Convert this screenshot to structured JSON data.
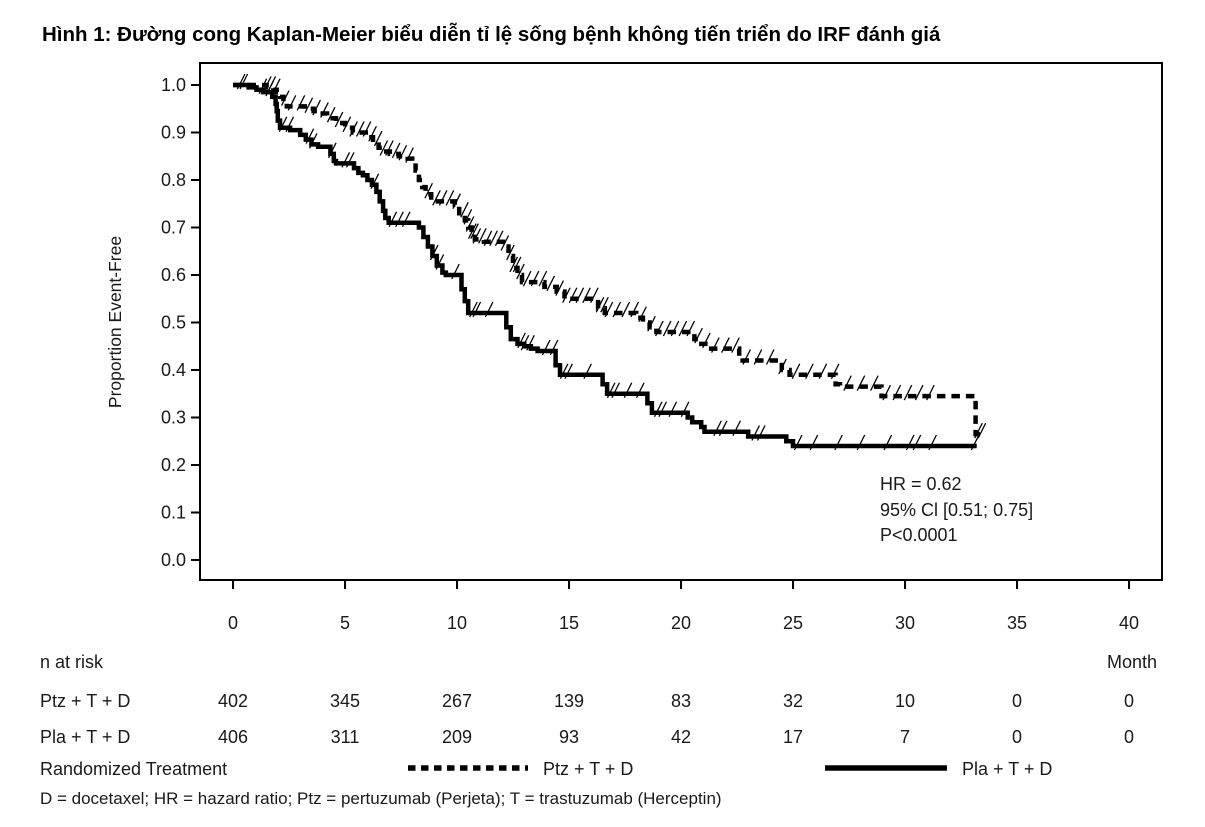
{
  "title": "Hình 1: Đường cong Kaplan-Meier biểu diễn tỉ lệ sống bệnh không tiến triển do IRF đánh giá",
  "colors": {
    "line": "#000000",
    "background": "#ffffff",
    "text": "#1a1a1a"
  },
  "chart_data": {
    "type": "line",
    "subtype": "kaplan-meier-step",
    "title": "Hình 1: Đường cong Kaplan-Meier biểu diễn tỉ lệ sống bệnh không tiến triển do IRF đánh giá",
    "xlabel": "Month",
    "ylabel": "Proportion Event-Free",
    "xlim": [
      0,
      40
    ],
    "ylim": [
      0.0,
      1.0
    ],
    "xticks": [
      0,
      5,
      10,
      15,
      20,
      25,
      30,
      35,
      40
    ],
    "ytick_labels": [
      "1.0",
      "0.9",
      "0.8",
      "0.7",
      "0.6",
      "0.5",
      "0.4",
      "0.3",
      "0.2",
      "0.1",
      "0.0"
    ],
    "grid": false,
    "legend_position": "bottom",
    "annotation": {
      "lines": [
        "HR = 0.62",
        "95% Cl [0.51; 0.75]",
        "P<0.0001"
      ]
    },
    "series": [
      {
        "name": "Ptz + T + D",
        "style": "dashed",
        "steps": [
          [
            0,
            1.0
          ],
          [
            1.5,
            0.995
          ],
          [
            1.8,
            0.99
          ],
          [
            1.95,
            0.985
          ],
          [
            2.1,
            0.975
          ],
          [
            2.25,
            0.965
          ],
          [
            2.4,
            0.955
          ],
          [
            3.2,
            0.95
          ],
          [
            3.6,
            0.945
          ],
          [
            3.85,
            0.94
          ],
          [
            4.2,
            0.93
          ],
          [
            4.6,
            0.92
          ],
          [
            5.0,
            0.91
          ],
          [
            5.35,
            0.9
          ],
          [
            6.05,
            0.89
          ],
          [
            6.25,
            0.88
          ],
          [
            6.5,
            0.868
          ],
          [
            6.65,
            0.86
          ],
          [
            7.0,
            0.855
          ],
          [
            7.4,
            0.85
          ],
          [
            7.8,
            0.845
          ],
          [
            8.0,
            0.835
          ],
          [
            8.15,
            0.82
          ],
          [
            8.3,
            0.8
          ],
          [
            8.45,
            0.785
          ],
          [
            8.6,
            0.77
          ],
          [
            8.85,
            0.755
          ],
          [
            9.9,
            0.748
          ],
          [
            10.1,
            0.73
          ],
          [
            10.35,
            0.715
          ],
          [
            10.5,
            0.7
          ],
          [
            10.65,
            0.685
          ],
          [
            10.8,
            0.675
          ],
          [
            11.2,
            0.67
          ],
          [
            12.05,
            0.66
          ],
          [
            12.3,
            0.64
          ],
          [
            12.5,
            0.615
          ],
          [
            12.7,
            0.6
          ],
          [
            12.9,
            0.585
          ],
          [
            13.9,
            0.575
          ],
          [
            14.45,
            0.565
          ],
          [
            14.8,
            0.55
          ],
          [
            16.3,
            0.53
          ],
          [
            16.6,
            0.52
          ],
          [
            18.0,
            0.51
          ],
          [
            18.3,
            0.5
          ],
          [
            18.6,
            0.49
          ],
          [
            18.9,
            0.48
          ],
          [
            20.6,
            0.465
          ],
          [
            20.8,
            0.455
          ],
          [
            21.2,
            0.445
          ],
          [
            22.6,
            0.43
          ],
          [
            22.75,
            0.42
          ],
          [
            24.5,
            0.4
          ],
          [
            24.85,
            0.39
          ],
          [
            26.9,
            0.37
          ],
          [
            27.1,
            0.365
          ],
          [
            28.95,
            0.345
          ],
          [
            33.15,
            0.265
          ]
        ],
        "end_month": 33.4,
        "censor_months": [
          0.33,
          1.5,
          1.7,
          1.9,
          2.3,
          2.6,
          3.0,
          3.35,
          3.7,
          4.05,
          4.35,
          4.7,
          5.05,
          5.35,
          5.65,
          5.95,
          6.2,
          6.45,
          6.7,
          6.95,
          7.25,
          7.55,
          7.85,
          8.7,
          9.05,
          9.35,
          9.65,
          9.95,
          10.3,
          10.45,
          10.55,
          10.65,
          10.75,
          10.85,
          11.1,
          11.35,
          11.6,
          11.85,
          12.1,
          12.35,
          12.5,
          12.65,
          12.8,
          13.1,
          13.45,
          13.8,
          14.15,
          14.55,
          14.85,
          15.15,
          15.45,
          15.75,
          16.1,
          16.35,
          16.55,
          16.75,
          17.1,
          17.5,
          17.9,
          18.25,
          18.65,
          19.0,
          19.35,
          19.7,
          20.05,
          20.4,
          20.75,
          21.1,
          21.5,
          21.95,
          22.4,
          22.9,
          23.4,
          23.95,
          24.5,
          25.1,
          25.7,
          26.3,
          26.85,
          27.4,
          28.0,
          28.6,
          29.15,
          29.6,
          30.1,
          30.6,
          31.1,
          33.25,
          33.4
        ]
      },
      {
        "name": "Pla + T + D",
        "style": "solid",
        "steps": [
          [
            0,
            1.0
          ],
          [
            0.7,
            0.995
          ],
          [
            1.05,
            0.99
          ],
          [
            1.35,
            0.985
          ],
          [
            1.75,
            0.975
          ],
          [
            1.9,
            0.96
          ],
          [
            1.95,
            0.945
          ],
          [
            2.0,
            0.925
          ],
          [
            2.1,
            0.91
          ],
          [
            2.55,
            0.905
          ],
          [
            3.0,
            0.895
          ],
          [
            3.25,
            0.885
          ],
          [
            3.5,
            0.875
          ],
          [
            3.8,
            0.87
          ],
          [
            4.35,
            0.855
          ],
          [
            4.5,
            0.84
          ],
          [
            4.6,
            0.835
          ],
          [
            5.4,
            0.825
          ],
          [
            5.6,
            0.815
          ],
          [
            5.8,
            0.81
          ],
          [
            6.0,
            0.8
          ],
          [
            6.2,
            0.79
          ],
          [
            6.4,
            0.775
          ],
          [
            6.55,
            0.755
          ],
          [
            6.7,
            0.735
          ],
          [
            6.8,
            0.72
          ],
          [
            6.95,
            0.71
          ],
          [
            8.3,
            0.7
          ],
          [
            8.5,
            0.68
          ],
          [
            8.7,
            0.66
          ],
          [
            8.9,
            0.64
          ],
          [
            9.1,
            0.62
          ],
          [
            9.35,
            0.605
          ],
          [
            9.5,
            0.6
          ],
          [
            10.2,
            0.57
          ],
          [
            10.35,
            0.545
          ],
          [
            10.5,
            0.52
          ],
          [
            12.2,
            0.49
          ],
          [
            12.4,
            0.465
          ],
          [
            12.7,
            0.455
          ],
          [
            13.0,
            0.45
          ],
          [
            13.3,
            0.445
          ],
          [
            13.6,
            0.44
          ],
          [
            14.4,
            0.41
          ],
          [
            14.6,
            0.39
          ],
          [
            16.5,
            0.37
          ],
          [
            16.7,
            0.35
          ],
          [
            18.5,
            0.33
          ],
          [
            18.7,
            0.31
          ],
          [
            20.3,
            0.3
          ],
          [
            20.5,
            0.29
          ],
          [
            20.9,
            0.28
          ],
          [
            21.05,
            0.27
          ],
          [
            23.0,
            0.26
          ],
          [
            24.7,
            0.25
          ],
          [
            25.0,
            0.24
          ]
        ],
        "end_month": 33.2,
        "censor_months": [
          0.45,
          1.3,
          1.6,
          2.2,
          2.5,
          3.4,
          3.55,
          4.4,
          5.0,
          5.2,
          6.3,
          7.1,
          7.4,
          7.7,
          8.95,
          9.2,
          9.9,
          10.7,
          10.85,
          11.4,
          12.85,
          13.0,
          13.25,
          13.95,
          14.3,
          14.75,
          14.95,
          15.8,
          16.85,
          17.05,
          17.6,
          18.15,
          18.95,
          19.15,
          19.6,
          20.15,
          21.6,
          21.85,
          22.45,
          23.3,
          23.55,
          25.2,
          25.9,
          27.0,
          28.0,
          29.2,
          30.2,
          30.5,
          31.2,
          33.1
        ]
      }
    ]
  },
  "risk_table": {
    "header": "n at risk",
    "month_label": "Month",
    "rows": [
      {
        "label": "Ptz + T + D",
        "counts": [
          "402",
          "345",
          "267",
          "139",
          "83",
          "32",
          "10",
          "0",
          "0"
        ]
      },
      {
        "label": "Pla + T + D",
        "counts": [
          "406",
          "311",
          "209",
          "93",
          "42",
          "17",
          "7",
          "0",
          "0"
        ]
      }
    ]
  },
  "legend": {
    "title": "Randomized Treatment",
    "items": [
      {
        "label": "Ptz + T + D",
        "style": "dashed"
      },
      {
        "label": "Pla + T + D",
        "style": "solid"
      }
    ]
  },
  "footnote": "D = docetaxel; HR = hazard ratio; Ptz = pertuzumab (Perjeta); T = trastuzumab (Herceptin)"
}
